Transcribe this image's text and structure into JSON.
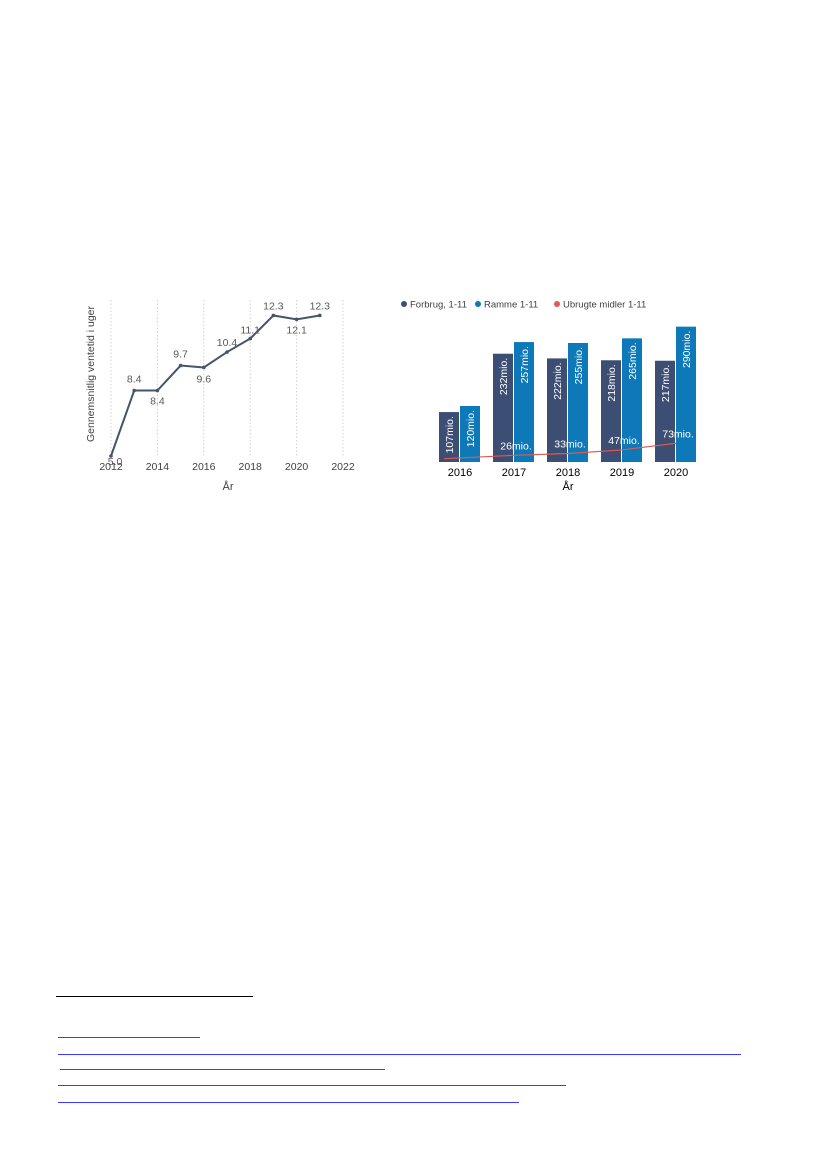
{
  "chart_data": [
    {
      "type": "line",
      "title": "",
      "xlabel": "År",
      "ylabel": "Gennemsnitlig ventetid i uger",
      "xlim": [
        2012,
        2022
      ],
      "xticks": [
        "2012",
        "2014",
        "2016",
        "2018",
        "2020",
        "2022"
      ],
      "grid": "vertical dotted",
      "colors": {
        "line": "#44546a",
        "labels": "#595959",
        "grid": "#d0d0d0"
      },
      "x": [
        2012,
        2013,
        2014,
        2015,
        2016,
        2017,
        2018,
        2019,
        2020,
        2021
      ],
      "y": [
        5.0,
        8.4,
        8.4,
        9.7,
        9.6,
        10.4,
        11.1,
        12.3,
        12.1,
        12.3
      ],
      "data_labels": [
        {
          "x": 2012,
          "text": "5.0"
        },
        {
          "x": 2013,
          "text": "8.4"
        },
        {
          "x": 2014,
          "text": "8.4"
        },
        {
          "x": 2015,
          "text": "9.7"
        },
        {
          "x": 2016,
          "text": "9.6"
        },
        {
          "x": 2017,
          "text": "10.4"
        },
        {
          "x": 2018,
          "text": "11.1"
        },
        {
          "x": 2019,
          "text": "12.3"
        },
        {
          "x": 2020,
          "text": "12.1"
        },
        {
          "x": 2021,
          "text": "12.3"
        }
      ]
    },
    {
      "type": "bar",
      "title": "",
      "xlabel": "År",
      "ylabel": "",
      "legend_position": "top-left",
      "categories": [
        "2016",
        "2017",
        "2018",
        "2019",
        "2020"
      ],
      "ylim": [
        0,
        300
      ],
      "series": [
        {
          "name": "Forbrug, 1-11",
          "type": "bar",
          "color": "#3c4e74",
          "values": [
            107,
            232,
            222,
            218,
            217
          ],
          "labels": [
            "107mio.",
            "232mio.",
            "222mio.",
            "218mio.",
            "217mio."
          ]
        },
        {
          "name": "Ramme 1-11",
          "type": "bar",
          "color": "#0e79b8",
          "values": [
            120,
            257,
            255,
            265,
            290
          ],
          "labels": [
            "120mio.",
            "257mio.",
            "255mio.",
            "265mio.",
            "290mio."
          ]
        },
        {
          "name": "Ubrugte midler 1-11",
          "type": "line",
          "color": "#e05a4f",
          "values": [
            13,
            26,
            33,
            47,
            73
          ],
          "labels": [
            "",
            "26mio.",
            "33mio.",
            "47mio.",
            "73mio."
          ]
        }
      ]
    }
  ]
}
